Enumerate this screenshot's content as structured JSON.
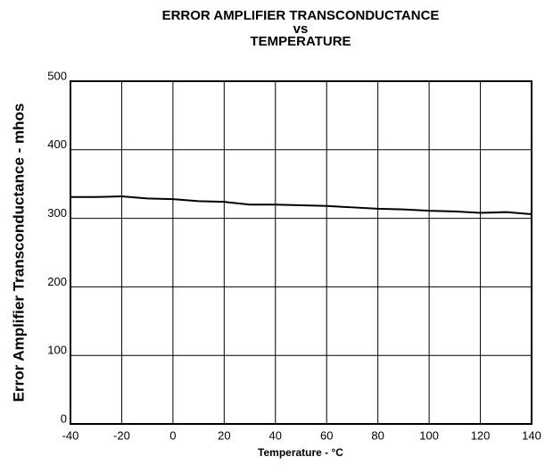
{
  "chart_data": {
    "type": "line",
    "title": [
      "ERROR AMPLIFIER TRANSCONDUCTANCE",
      "vs",
      "TEMPERATURE"
    ],
    "x_label": "Temperature - °C",
    "y_label": "Error Amplifier Transconductance - mhos",
    "x": [
      -40,
      -30,
      -20,
      -10,
      0,
      10,
      20,
      30,
      40,
      50,
      60,
      70,
      80,
      90,
      100,
      110,
      120,
      130,
      140
    ],
    "series": [
      {
        "color": "#000000",
        "values": [
          331,
          331,
          332,
          329,
          328,
          325,
          324,
          320,
          320,
          319,
          318,
          316,
          314,
          313,
          311,
          310,
          308,
          309,
          306
        ]
      }
    ],
    "xlim": [
      -40,
      140
    ],
    "xticks": [
      -40,
      -20,
      0,
      20,
      40,
      60,
      80,
      100,
      120,
      140
    ],
    "ylim": [
      0,
      500
    ],
    "yticks": [
      0,
      100,
      200,
      300,
      400,
      500
    ],
    "grid": true
  }
}
